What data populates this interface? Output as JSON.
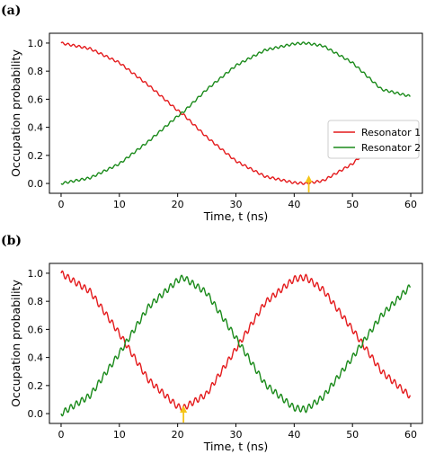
{
  "chart_data": [
    {
      "type": "line",
      "panel_label": "(a)",
      "xlabel": "Time, t (ns)",
      "ylabel": "Occupation probability",
      "xlim": [
        -2,
        62
      ],
      "ylim": [
        -0.07,
        1.07
      ],
      "xticks": [
        0,
        10,
        20,
        30,
        40,
        50,
        60
      ],
      "yticks": [
        0.0,
        0.2,
        0.4,
        0.6,
        0.8,
        1.0
      ],
      "grid": false,
      "legend": {
        "placement": "right",
        "entries": [
          "Resonator 1",
          "Resonator 2"
        ]
      },
      "annotation": {
        "type": "arrow",
        "color": "#f5c518",
        "x": 42.5
      },
      "series": [
        {
          "name": "Resonator 1",
          "color": "#e41a1c",
          "x": [
            0,
            5,
            10,
            15,
            20,
            21,
            25,
            30,
            35,
            40,
            42,
            45,
            50,
            55,
            60
          ],
          "values": [
            1.0,
            0.96,
            0.86,
            0.7,
            0.52,
            0.49,
            0.33,
            0.16,
            0.05,
            0.005,
            0.0,
            0.02,
            0.14,
            0.33,
            0.38
          ]
        },
        {
          "name": "Resonator 2",
          "color": "#1a8a1a",
          "x": [
            0,
            5,
            10,
            15,
            20,
            21,
            25,
            30,
            35,
            40,
            42,
            45,
            50,
            55,
            60
          ],
          "values": [
            0.0,
            0.04,
            0.14,
            0.3,
            0.48,
            0.51,
            0.67,
            0.84,
            0.95,
            0.995,
            1.0,
            0.98,
            0.86,
            0.67,
            0.62
          ]
        }
      ]
    },
    {
      "type": "line",
      "panel_label": "(b)",
      "xlabel": "Time, t (ns)",
      "ylabel": "Occupation probability",
      "xlim": [
        -2,
        62
      ],
      "ylim": [
        -0.07,
        1.07
      ],
      "xticks": [
        0,
        10,
        20,
        30,
        40,
        50,
        60
      ],
      "yticks": [
        0.0,
        0.2,
        0.4,
        0.6,
        0.8,
        1.0
      ],
      "grid": false,
      "annotation": {
        "type": "arrow",
        "color": "#f5c518",
        "x": 21
      },
      "series": [
        {
          "name": "Resonator 1",
          "color": "#e41a1c",
          "x": [
            0,
            5,
            10,
            15,
            20,
            21,
            25,
            30,
            35,
            40,
            42,
            45,
            50,
            55,
            60
          ],
          "values": [
            1.0,
            0.87,
            0.57,
            0.24,
            0.05,
            0.04,
            0.14,
            0.46,
            0.79,
            0.96,
            0.97,
            0.88,
            0.6,
            0.3,
            0.12
          ]
        },
        {
          "name": "Resonator 2",
          "color": "#1a8a1a",
          "x": [
            0,
            5,
            10,
            15,
            20,
            21,
            25,
            30,
            35,
            40,
            42,
            45,
            50,
            55,
            60
          ],
          "values": [
            0.0,
            0.13,
            0.43,
            0.76,
            0.95,
            0.97,
            0.86,
            0.54,
            0.21,
            0.04,
            0.03,
            0.12,
            0.4,
            0.7,
            0.91
          ]
        }
      ]
    }
  ]
}
